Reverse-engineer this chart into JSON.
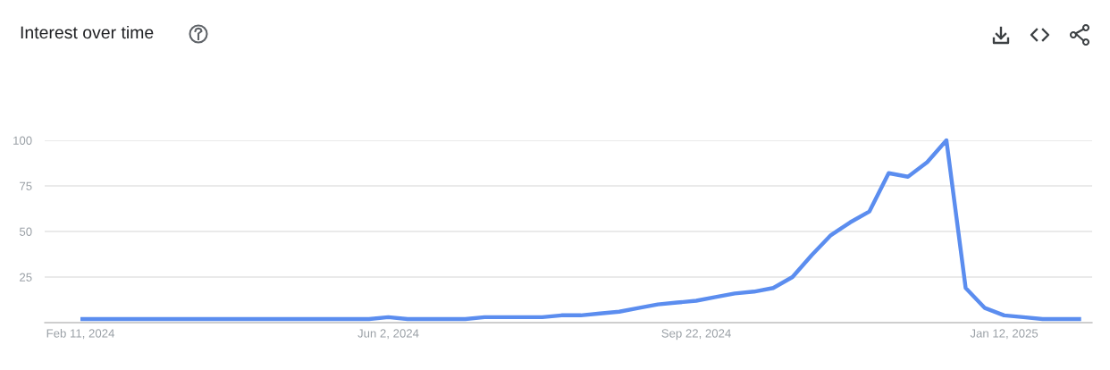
{
  "chart_data": {
    "type": "line",
    "title": "Interest over time",
    "x": [
      "2024-02-11",
      "2024-02-18",
      "2024-02-25",
      "2024-03-03",
      "2024-03-10",
      "2024-03-17",
      "2024-03-24",
      "2024-03-31",
      "2024-04-07",
      "2024-04-14",
      "2024-04-21",
      "2024-04-28",
      "2024-05-05",
      "2024-05-12",
      "2024-05-19",
      "2024-05-26",
      "2024-06-02",
      "2024-06-09",
      "2024-06-16",
      "2024-06-23",
      "2024-06-30",
      "2024-07-07",
      "2024-07-14",
      "2024-07-21",
      "2024-07-28",
      "2024-08-04",
      "2024-08-11",
      "2024-08-18",
      "2024-08-25",
      "2024-09-01",
      "2024-09-08",
      "2024-09-15",
      "2024-09-22",
      "2024-09-29",
      "2024-10-06",
      "2024-10-13",
      "2024-10-20",
      "2024-10-27",
      "2024-11-03",
      "2024-11-10",
      "2024-11-17",
      "2024-11-24",
      "2024-12-01",
      "2024-12-08",
      "2024-12-15",
      "2024-12-22",
      "2024-12-29",
      "2025-01-05",
      "2025-01-12",
      "2025-01-19",
      "2025-01-26",
      "2025-02-02",
      "2025-02-09"
    ],
    "series": [
      {
        "color": "#5b8def",
        "values": [
          2,
          2,
          2,
          2,
          2,
          2,
          2,
          2,
          2,
          2,
          2,
          2,
          2,
          2,
          2,
          2,
          3,
          2,
          2,
          2,
          2,
          3,
          3,
          3,
          3,
          4,
          4,
          5,
          6,
          8,
          10,
          11,
          12,
          14,
          16,
          17,
          19,
          25,
          37,
          48,
          55,
          61,
          82,
          80,
          88,
          100,
          19,
          8,
          4,
          3,
          2,
          2,
          2
        ]
      }
    ],
    "xlim": [
      "2024-01-29",
      "2025-02-13"
    ],
    "xticks": [
      {
        "value": "2024-02-11",
        "label": "Feb 11, 2024"
      },
      {
        "value": "2024-06-02",
        "label": "Jun 2, 2024"
      },
      {
        "value": "2024-09-22",
        "label": "Sep 22, 2024"
      },
      {
        "value": "2025-01-12",
        "label": "Jan 12, 2025"
      }
    ],
    "ylim": [
      0,
      100
    ],
    "yticks": [
      25,
      50,
      75,
      100
    ],
    "grid": "y",
    "line_style": "solid",
    "marker": "none"
  }
}
